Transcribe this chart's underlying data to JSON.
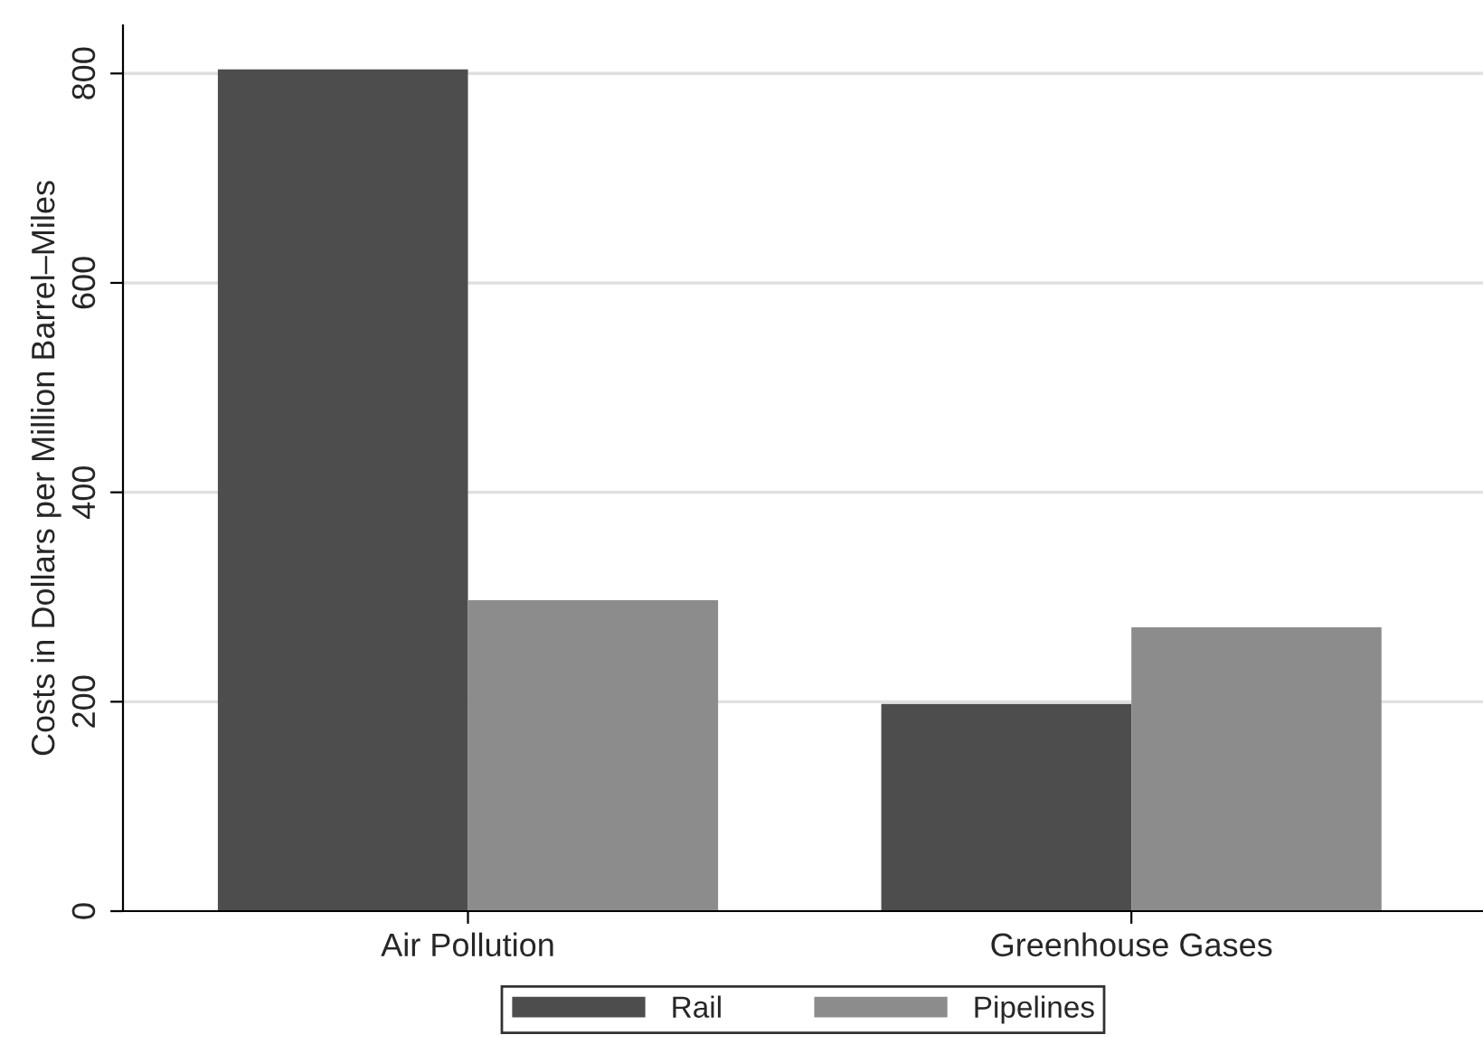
{
  "chart_data": {
    "type": "bar",
    "ylabel": "Costs in Dollars per Million Barrel–Miles",
    "categories": [
      "Air Pollution",
      "Greenhouse Gases"
    ],
    "series": [
      {
        "name": "Rail",
        "color": "#4d4d4d",
        "values": [
          804,
          198
        ]
      },
      {
        "name": "Pipelines",
        "color": "#8c8c8c",
        "values": [
          297,
          271
        ]
      }
    ],
    "ylim": [
      0,
      846
    ],
    "yticks": [
      0,
      200,
      400,
      600,
      800
    ],
    "grid": "y",
    "legend": "bottom"
  }
}
